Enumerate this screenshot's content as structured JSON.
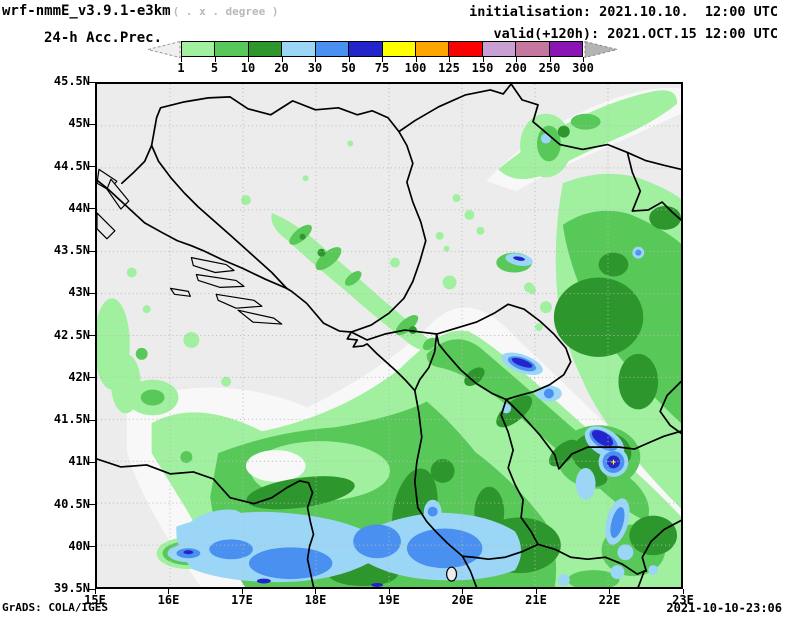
{
  "header": {
    "model_title": "wrf-nmmE_v3.9.1-e3km",
    "model_subtitle": "( . x . degree )",
    "product_title": "24-h Acc.Prec.",
    "init_line": "initialisation: 2021.10.10.  12:00 UTC",
    "valid_line": "valid(+120h): 2021.OCT.15 12:00 UTC"
  },
  "colorbar": {
    "tick_labels": [
      "1",
      "5",
      "10",
      "20",
      "30",
      "50",
      "75",
      "100",
      "125",
      "150",
      "200",
      "250",
      "300"
    ],
    "segment_colors": [
      "#a0f0a0",
      "#58c858",
      "#2d962d",
      "#9cd6f7",
      "#4990f0",
      "#2424cc",
      "#ffff00",
      "#ffa500",
      "#fa0000",
      "#c9a0d4",
      "#c478a0",
      "#8a14b4"
    ],
    "underflow_arrow_color": "#f0f0f0",
    "overflow_arrow_color": "#b4b4b4"
  },
  "map": {
    "lat_labels": [
      "45.5N",
      "45N",
      "44.5N",
      "44N",
      "43.5N",
      "43N",
      "42.5N",
      "42N",
      "41.5N",
      "41N",
      "40.5N",
      "40N",
      "39.5N"
    ],
    "lon_labels": [
      "15E",
      "16E",
      "17E",
      "18E",
      "19E",
      "20E",
      "21E",
      "22E",
      "23E"
    ],
    "background_color": "#ececec",
    "max_marker": "+"
  },
  "footer": {
    "left": "GrADS: COLA/IGES",
    "right": "2021-10-10-23:06"
  }
}
